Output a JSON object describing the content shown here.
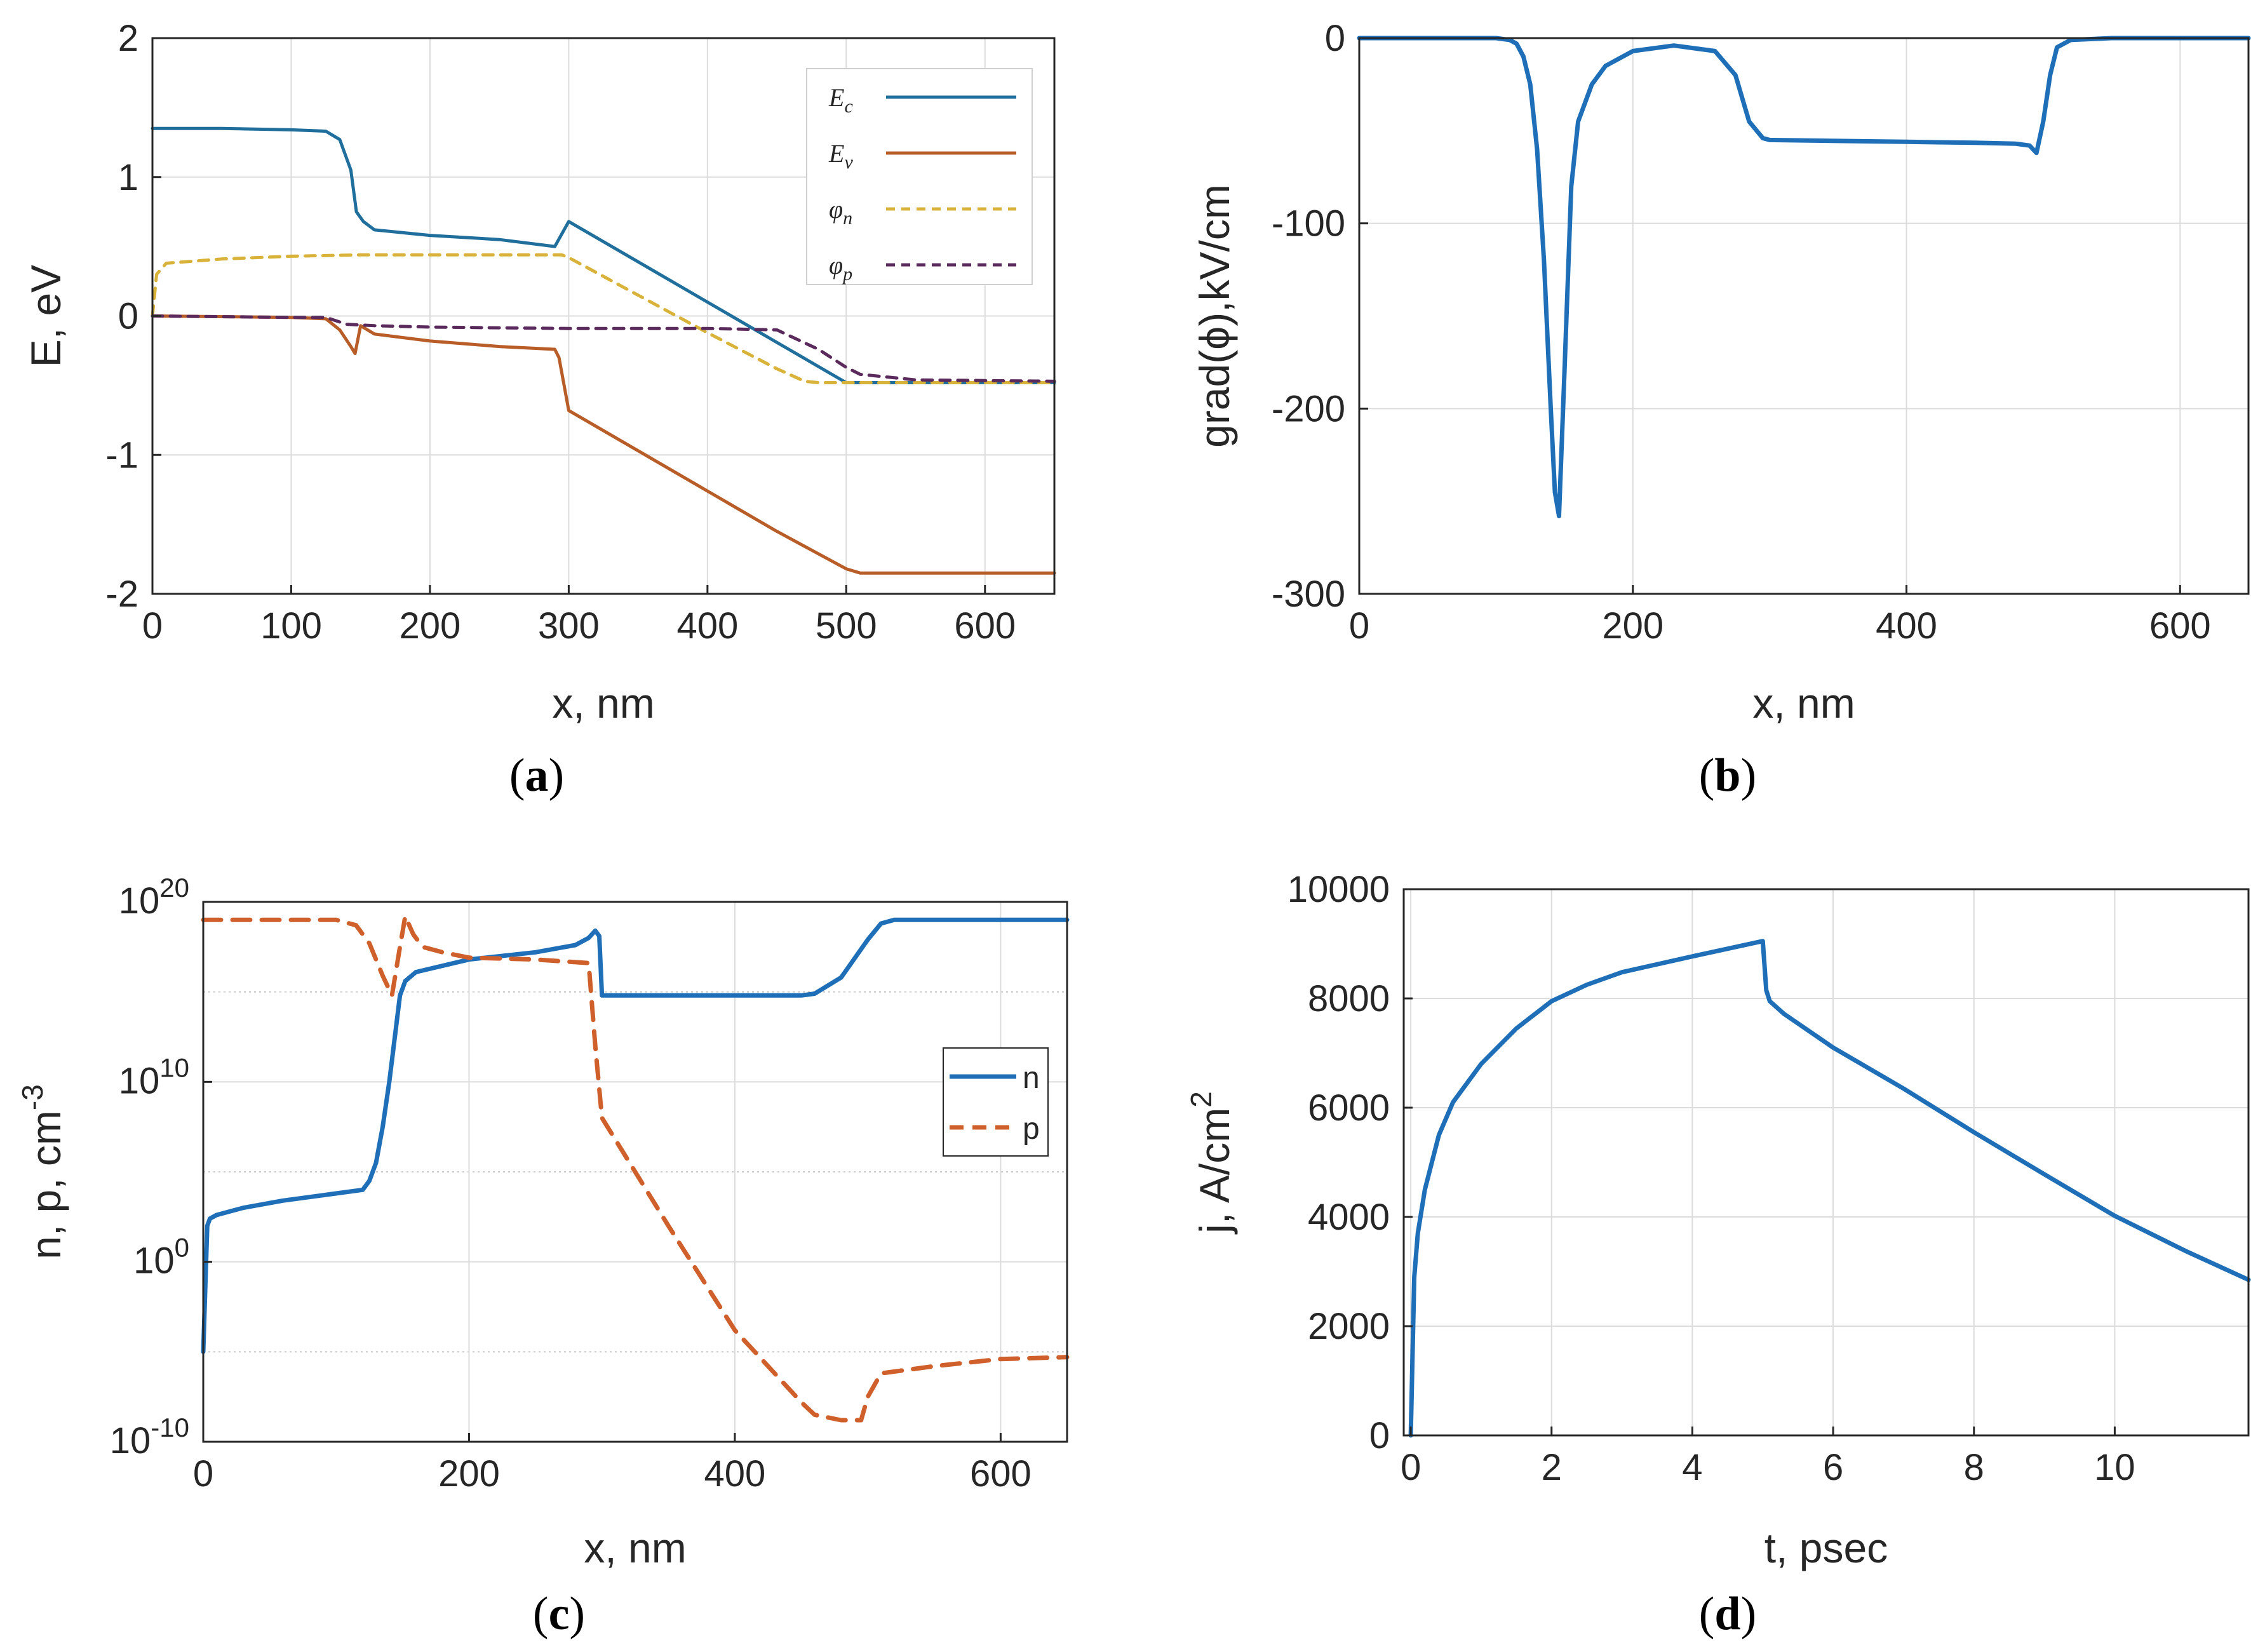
{
  "chart_data": [
    {
      "id": "a",
      "type": "line",
      "caption": "(a)",
      "caption_letter": "a",
      "xlabel": "x, nm",
      "ylabel": "E, eV",
      "xlim": [
        0,
        650
      ],
      "ylim": [
        -2,
        2
      ],
      "xticks": [
        0,
        100,
        200,
        300,
        400,
        500,
        600
      ],
      "yticks": [
        -2,
        -1,
        0,
        1,
        2
      ],
      "grid": true,
      "legend_position": "top-right",
      "series": [
        {
          "name": "E",
          "sub": "c",
          "color": "#1f6e9c",
          "dash": "solid",
          "x": [
            0,
            50,
            100,
            125,
            135,
            143,
            147,
            152,
            160,
            200,
            250,
            290,
            300,
            350,
            400,
            450,
            500,
            550,
            600,
            650
          ],
          "y": [
            1.35,
            1.35,
            1.34,
            1.33,
            1.27,
            1.05,
            0.75,
            0.68,
            0.62,
            0.58,
            0.55,
            0.5,
            0.68,
            0.39,
            0.1,
            -0.19,
            -0.48,
            -0.48,
            -0.48,
            -0.48
          ]
        },
        {
          "name": "E",
          "sub": "v",
          "color": "#b85c28",
          "dash": "solid",
          "x": [
            0,
            100,
            125,
            135,
            143,
            146,
            150,
            160,
            200,
            250,
            290,
            293,
            300,
            350,
            400,
            450,
            500,
            510,
            600,
            650
          ],
          "y": [
            0.0,
            -0.01,
            -0.02,
            -0.1,
            -0.22,
            -0.27,
            -0.07,
            -0.13,
            -0.18,
            -0.22,
            -0.24,
            -0.3,
            -0.68,
            -0.97,
            -1.26,
            -1.55,
            -1.82,
            -1.85,
            -1.85,
            -1.85
          ]
        },
        {
          "name": "φ",
          "sub": "n",
          "color": "#d9b23a",
          "dash": "dashed",
          "x": [
            0,
            3,
            10,
            50,
            100,
            150,
            200,
            250,
            295,
            300,
            350,
            400,
            450,
            470,
            480,
            500,
            550,
            650
          ],
          "y": [
            0.0,
            0.3,
            0.38,
            0.41,
            0.43,
            0.44,
            0.44,
            0.44,
            0.44,
            0.42,
            0.15,
            -0.12,
            -0.38,
            -0.47,
            -0.48,
            -0.48,
            -0.48,
            -0.48
          ]
        },
        {
          "name": "φ",
          "sub": "p",
          "color": "#5b2a5c",
          "dash": "dashed",
          "x": [
            0,
            100,
            125,
            140,
            160,
            200,
            300,
            400,
            450,
            480,
            500,
            510,
            550,
            650
          ],
          "y": [
            0.0,
            -0.01,
            -0.01,
            -0.06,
            -0.07,
            -0.08,
            -0.09,
            -0.09,
            -0.1,
            -0.24,
            -0.37,
            -0.42,
            -0.46,
            -0.47
          ]
        }
      ]
    },
    {
      "id": "b",
      "type": "line",
      "caption": "(b)",
      "caption_letter": "b",
      "xlabel": "x, nm",
      "ylabel": "grad(ϕ),kV/cm",
      "xlim": [
        0,
        650
      ],
      "ylim": [
        -300,
        0
      ],
      "xticks": [
        0,
        200,
        400,
        600
      ],
      "yticks": [
        -300,
        -200,
        -100,
        0
      ],
      "grid": true,
      "series": [
        {
          "name": "grad",
          "color": "#1f6fb8",
          "dash": "solid",
          "x": [
            0,
            100,
            110,
            115,
            120,
            125,
            130,
            135,
            140,
            143,
            146,
            150,
            155,
            160,
            170,
            180,
            200,
            230,
            260,
            275,
            285,
            295,
            300,
            350,
            400,
            450,
            480,
            490,
            495,
            500,
            505,
            510,
            520,
            550,
            650
          ],
          "y": [
            0,
            0,
            -1,
            -3,
            -10,
            -25,
            -60,
            -120,
            -200,
            -245,
            -258,
            -180,
            -80,
            -45,
            -25,
            -15,
            -7,
            -4,
            -7,
            -20,
            -45,
            -54,
            -55,
            -55.5,
            -56,
            -56.5,
            -57,
            -58,
            -62,
            -45,
            -20,
            -5,
            -1,
            0,
            0
          ]
        }
      ]
    },
    {
      "id": "c",
      "type": "line",
      "caption": "(c)",
      "caption_letter": "c",
      "xlabel": "x, nm",
      "ylabel": "n, p, cm",
      "ylabel_sup": "-3",
      "xlim": [
        0,
        650
      ],
      "ylim_log10": [
        -10,
        20
      ],
      "xticks": [
        0,
        200,
        400,
        600
      ],
      "yticks_log10": [
        -10,
        0,
        10,
        20
      ],
      "ytick_base": "10",
      "yscale": "log",
      "grid": true,
      "minor_grid_log10": [
        -5,
        5,
        15
      ],
      "legend_position": "right",
      "series": [
        {
          "name": "n",
          "color": "#1f6fb8",
          "dash": "solid",
          "log10_y": true,
          "x": [
            0,
            3,
            5,
            10,
            30,
            60,
            100,
            120,
            125,
            130,
            135,
            140,
            145,
            148,
            152,
            160,
            200,
            250,
            280,
            290,
            295,
            298,
            300,
            350,
            400,
            450,
            460,
            480,
            500,
            510,
            520,
            600,
            650
          ],
          "y": [
            -5,
            2,
            2.4,
            2.6,
            3.0,
            3.4,
            3.8,
            4.0,
            4.5,
            5.5,
            7.5,
            10.0,
            13.0,
            14.8,
            15.6,
            16.1,
            16.8,
            17.2,
            17.6,
            18.0,
            18.4,
            18.1,
            14.8,
            14.8,
            14.8,
            14.8,
            14.9,
            15.8,
            17.9,
            18.8,
            19.0,
            19.0,
            19.0
          ]
        },
        {
          "name": "p",
          "color": "#d0602b",
          "dash": "dashed",
          "log10_y": true,
          "x": [
            0,
            50,
            100,
            115,
            125,
            135,
            142,
            148,
            152,
            158,
            165,
            180,
            200,
            250,
            290,
            295,
            300,
            350,
            400,
            450,
            460,
            480,
            495,
            500,
            510,
            550,
            600,
            650
          ],
          "y": [
            19.0,
            19.0,
            19.0,
            18.7,
            17.7,
            15.9,
            14.8,
            17.5,
            19.2,
            18.2,
            17.5,
            17.2,
            16.9,
            16.8,
            16.6,
            12.0,
            8.0,
            2.0,
            -3.8,
            -7.8,
            -8.5,
            -8.8,
            -8.8,
            -7.5,
            -6.2,
            -5.8,
            -5.4,
            -5.3
          ]
        }
      ]
    },
    {
      "id": "d",
      "type": "line",
      "caption": "(d)",
      "caption_letter": "d",
      "xlabel": "t, psec",
      "ylabel": "j, A/cm",
      "ylabel_sup": "2",
      "xlim": [
        -0.1,
        11.9
      ],
      "ylim": [
        0,
        10000
      ],
      "xticks": [
        0,
        2,
        4,
        6,
        8,
        10
      ],
      "yticks": [
        0,
        2000,
        4000,
        6000,
        8000,
        10000
      ],
      "grid": true,
      "series": [
        {
          "name": "j",
          "color": "#1f6fb8",
          "dash": "solid",
          "x": [
            0,
            0.05,
            0.1,
            0.2,
            0.4,
            0.6,
            1.0,
            1.5,
            2.0,
            2.5,
            3.0,
            4.0,
            5.0,
            5.05,
            5.1,
            5.3,
            6.0,
            7.0,
            8.0,
            9.0,
            10.0,
            11.0,
            11.9
          ],
          "y": [
            0,
            2900,
            3700,
            4500,
            5500,
            6100,
            6800,
            7450,
            7950,
            8250,
            8480,
            8770,
            9050,
            8150,
            7950,
            7720,
            7100,
            6350,
            5550,
            4780,
            4020,
            3380,
            2850
          ]
        }
      ]
    }
  ]
}
